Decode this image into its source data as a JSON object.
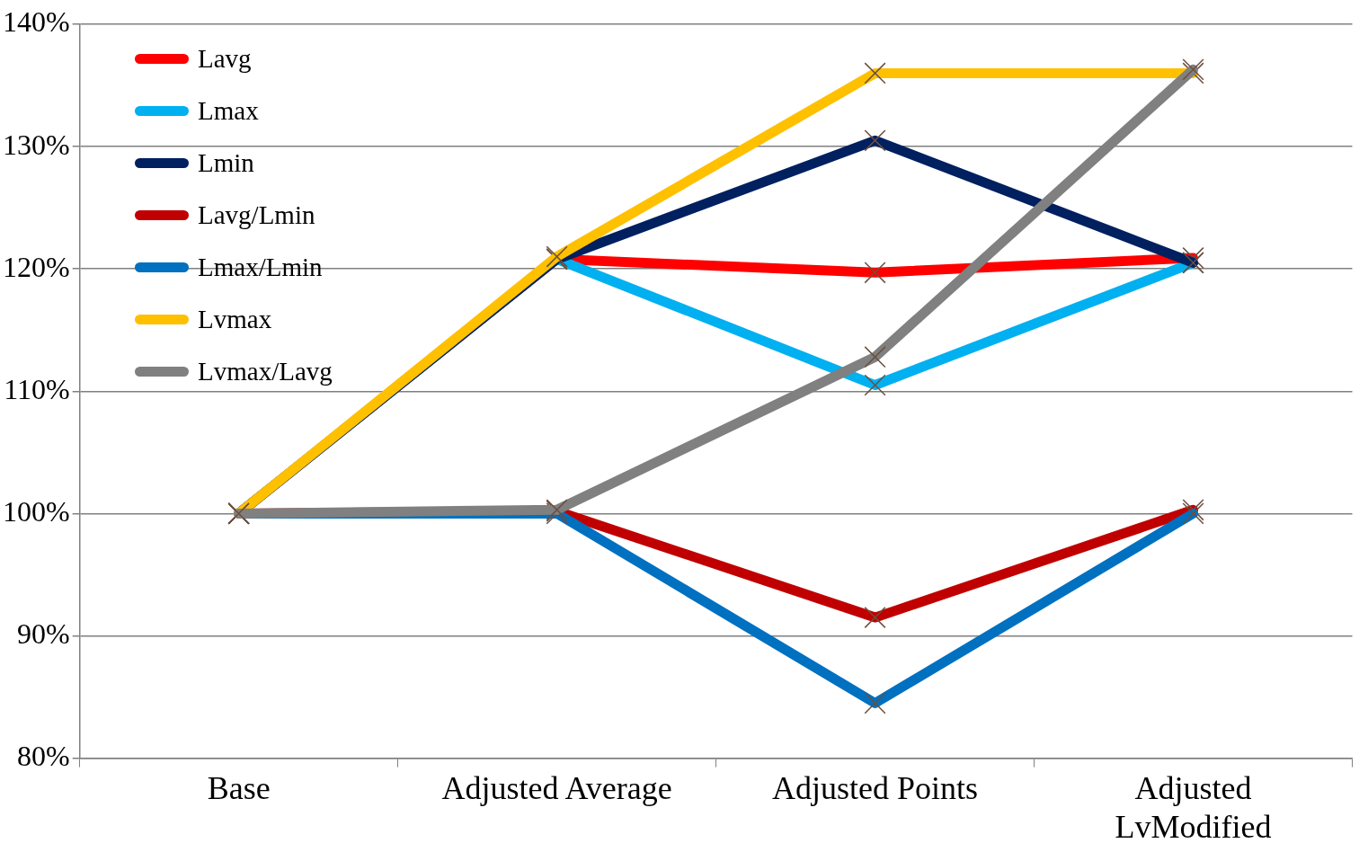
{
  "chart_data": {
    "type": "line",
    "categories": [
      "Base",
      "Adjusted Average",
      "Adjusted Points",
      "Adjusted LvModified"
    ],
    "series": [
      {
        "name": "Lavg",
        "color": "#ff0000",
        "values": [
          100,
          120.8,
          119.7,
          120.9
        ]
      },
      {
        "name": "Lmax",
        "color": "#00b0f0",
        "values": [
          100,
          120.8,
          110.5,
          120.5
        ]
      },
      {
        "name": "Lmin",
        "color": "#002060",
        "values": [
          100,
          120.8,
          130.5,
          120.5
        ]
      },
      {
        "name": "Lavg/Lmin",
        "color": "#c00000",
        "values": [
          100,
          100.2,
          91.5,
          100.3
        ]
      },
      {
        "name": "Lmax/Lmin",
        "color": "#0070c0",
        "values": [
          100,
          100,
          84.5,
          100
        ]
      },
      {
        "name": "Lvmax",
        "color": "#ffc000",
        "values": [
          100,
          121,
          136,
          136
        ]
      },
      {
        "name": "Lvmax/Lavg",
        "color": "#808080",
        "values": [
          100,
          100.3,
          112.8,
          136.3
        ]
      }
    ],
    "ylim": [
      80,
      140
    ],
    "yticks": [
      {
        "value": 80,
        "label": "80%"
      },
      {
        "value": 90,
        "label": "90%"
      },
      {
        "value": 100,
        "label": "100%"
      },
      {
        "value": 110,
        "label": "110%"
      },
      {
        "value": 120,
        "label": "120%"
      },
      {
        "value": 130,
        "label": "130%"
      },
      {
        "value": 140,
        "label": "140%"
      }
    ],
    "grid": "y",
    "legend": "top left",
    "marker": "cross",
    "line_style": "solid"
  }
}
